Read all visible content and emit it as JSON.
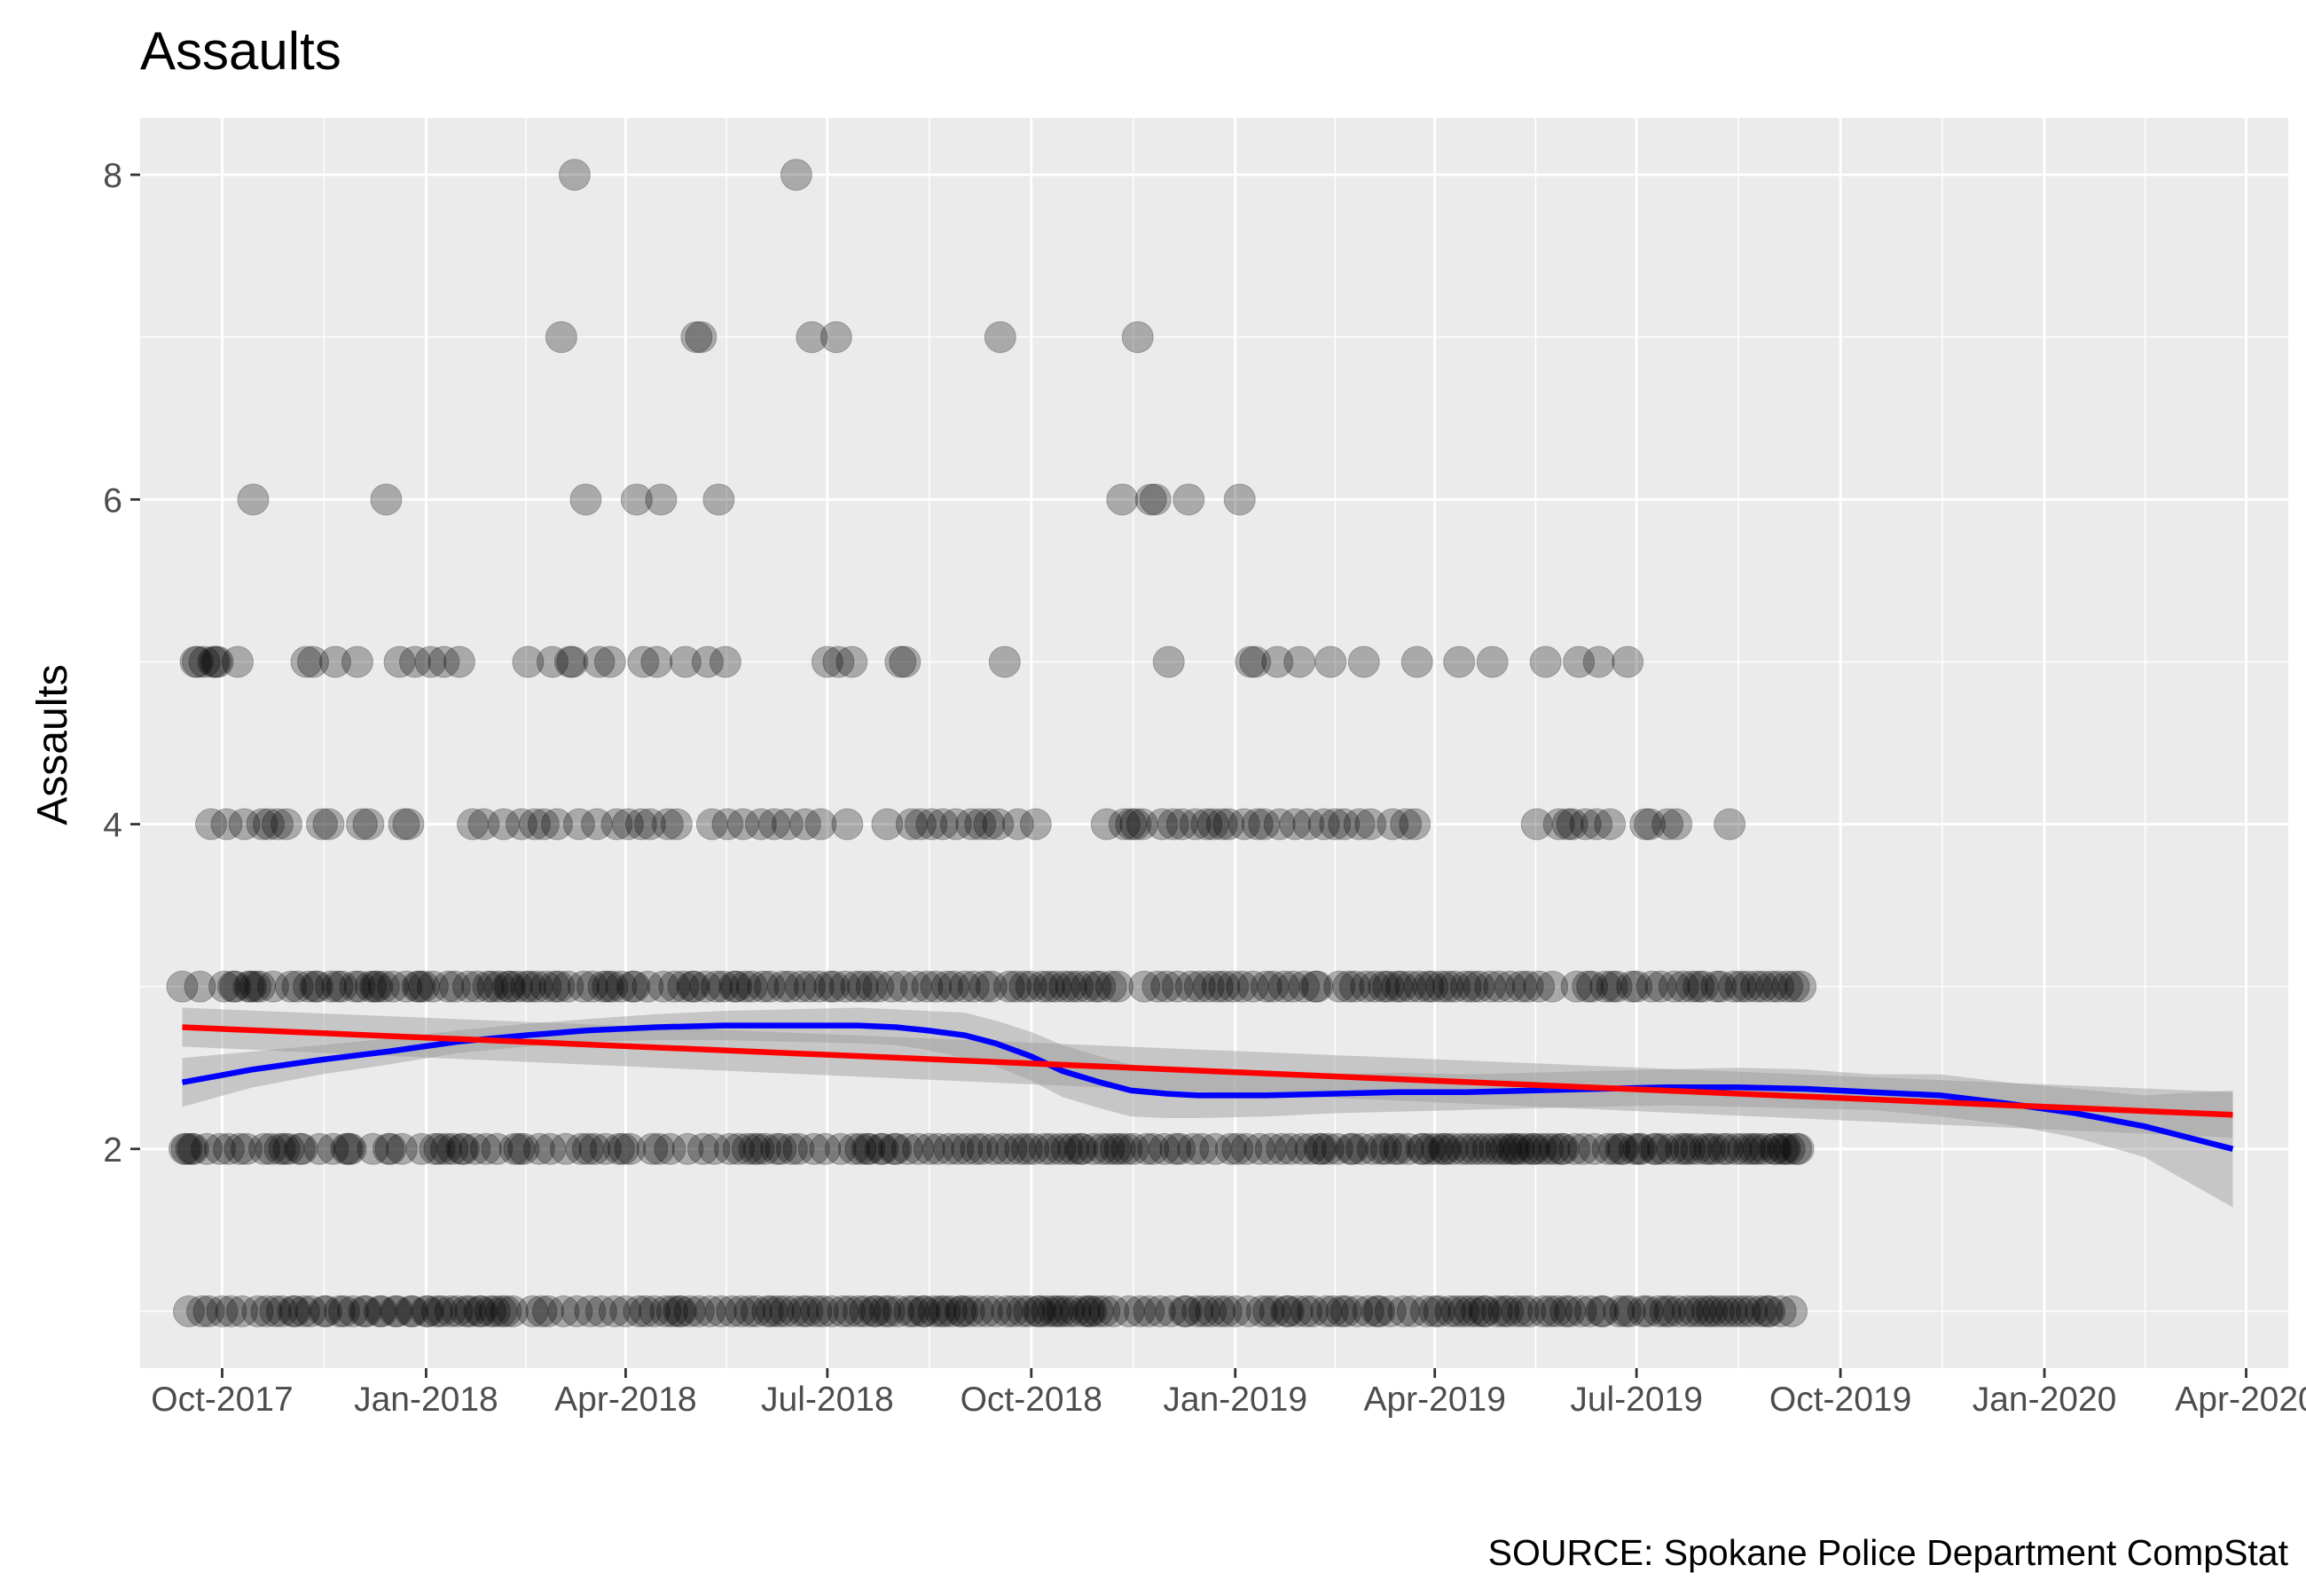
{
  "chart_data": {
    "type": "scatter",
    "title": "Assaults",
    "ylabel": "Assaults",
    "xlabel": "",
    "caption": "SOURCE: Spokane Police Department CompStat",
    "x_range": [
      "2017-08-25",
      "2020-04-20"
    ],
    "ylim": [
      0.65,
      8.35
    ],
    "y_ticks": [
      2,
      4,
      6,
      8
    ],
    "x_ticks": [
      {
        "date": "2017-10-01",
        "label": "Oct-2017"
      },
      {
        "date": "2018-01-01",
        "label": "Jan-2018"
      },
      {
        "date": "2018-04-01",
        "label": "Apr-2018"
      },
      {
        "date": "2018-07-01",
        "label": "Jul-2018"
      },
      {
        "date": "2018-10-01",
        "label": "Oct-2018"
      },
      {
        "date": "2019-01-01",
        "label": "Jan-2019"
      },
      {
        "date": "2019-04-01",
        "label": "Apr-2019"
      },
      {
        "date": "2019-07-01",
        "label": "Jul-2019"
      },
      {
        "date": "2019-10-01",
        "label": "Oct-2019"
      },
      {
        "date": "2020-01-01",
        "label": "Jan-2020"
      },
      {
        "date": "2020-04-01",
        "label": "Apr-2020"
      }
    ],
    "grid": true,
    "points": {
      "start_date": "2017-09-13",
      "point_color": "#000000",
      "point_opacity": 0.28,
      "description": "daily assault counts",
      "daily_values": [
        3,
        2,
        2,
        1,
        2,
        2,
        5,
        5,
        3,
        1,
        5,
        2,
        1,
        4,
        5,
        5,
        5,
        2,
        1,
        3,
        4,
        2,
        1,
        3,
        3,
        5,
        2,
        1,
        4,
        2,
        3,
        3,
        6,
        3,
        1,
        3,
        4,
        2,
        1,
        4,
        2,
        3,
        1,
        4,
        2,
        1,
        2,
        4,
        2,
        3,
        1,
        1,
        3,
        2,
        2,
        1,
        5,
        3,
        1,
        5,
        3,
        3,
        2,
        4,
        1,
        1,
        4,
        3,
        2,
        5,
        3,
        1,
        3,
        1,
        2,
        2,
        2,
        1,
        3,
        5,
        3,
        4,
        1,
        1,
        4,
        3,
        2,
        3,
        3,
        1,
        1,
        3,
        6,
        2,
        2,
        3,
        1,
        1,
        5,
        2,
        4,
        3,
        4,
        1,
        1,
        5,
        3,
        3,
        2,
        3,
        1,
        1,
        5,
        3,
        2,
        1,
        2,
        1,
        5,
        2,
        3,
        1,
        2,
        3,
        1,
        5,
        2,
        2,
        1,
        3,
        1,
        4,
        2,
        3,
        1,
        1,
        4,
        2,
        3,
        1,
        3,
        1,
        2,
        3,
        1,
        4,
        1,
        3,
        3,
        1,
        2,
        3,
        2,
        4,
        2,
        3,
        5,
        3,
        1,
        4,
        3,
        2,
        1,
        4,
        3,
        1,
        2,
        5,
        3,
        4,
        3,
        7,
        1,
        2,
        3,
        5,
        5,
        8,
        1,
        4,
        2,
        3,
        6,
        2,
        1,
        3,
        2,
        4,
        5,
        1,
        3,
        2,
        3,
        5,
        3,
        1,
        4,
        2,
        3,
        2,
        1,
        4,
        2,
        3,
        3,
        6,
        1,
        4,
        5,
        1,
        3,
        4,
        2,
        1,
        5,
        2,
        6,
        3,
        1,
        4,
        2,
        1,
        3,
        4,
        1,
        1,
        3,
        5,
        2,
        1,
        3,
        3,
        7,
        1,
        7,
        2,
        3,
        5,
        1,
        4,
        2,
        3,
        6,
        1,
        3,
        5,
        4,
        2,
        1,
        3,
        3,
        2,
        1,
        4,
        3,
        2,
        1,
        3,
        2,
        1,
        2,
        4,
        3,
        2,
        1,
        3,
        1,
        4,
        2,
        1,
        2,
        3,
        1,
        4,
        3,
        2,
        1,
        8,
        2,
        3,
        1,
        4,
        1,
        3,
        7,
        2,
        1,
        3,
        4,
        1,
        2,
        5,
        3,
        1,
        3,
        7,
        5,
        2,
        1,
        3,
        4,
        1,
        5,
        2,
        3,
        1,
        2,
        3,
        1,
        2,
        2,
        3,
        1,
        1,
        3,
        2,
        2,
        1,
        4,
        1,
        3,
        2,
        2,
        1,
        5,
        3,
        5,
        2,
        1,
        4,
        1,
        3,
        2,
        4,
        1,
        1,
        3,
        2,
        4,
        1,
        3,
        2,
        1,
        4,
        1,
        3,
        2,
        1,
        3,
        4,
        2,
        1,
        1,
        3,
        2,
        1,
        4,
        3,
        2,
        1,
        4,
        2,
        3,
        1,
        4,
        3,
        2,
        1,
        4,
        7,
        2,
        5,
        1,
        3,
        2,
        1,
        3,
        4,
        2,
        1,
        3,
        2,
        1,
        3,
        2,
        4,
        1,
        1,
        3,
        2,
        1,
        3,
        2,
        1,
        3,
        1,
        2,
        1,
        3,
        2,
        1,
        3,
        2,
        1,
        3,
        2,
        2,
        1,
        3,
        1,
        1,
        2,
        3,
        1,
        3,
        2,
        1,
        4,
        2,
        3,
        1,
        2,
        3,
        2,
        6,
        4,
        2,
        1,
        4,
        2,
        4,
        7,
        1,
        4,
        3,
        2,
        1,
        6,
        2,
        6,
        3,
        1,
        4,
        2,
        3,
        5,
        1,
        4,
        2,
        3,
        2,
        4,
        1,
        1,
        6,
        3,
        2,
        4,
        1,
        3,
        2,
        1,
        4,
        3,
        1,
        4,
        2,
        3,
        1,
        4,
        3,
        1,
        4,
        2,
        3,
        1,
        2,
        6,
        3,
        4,
        2,
        1,
        5,
        3,
        5,
        4,
        2,
        1,
        4,
        3,
        1,
        2,
        3,
        1,
        5,
        4,
        2,
        3,
        1,
        1,
        2,
        3,
        4,
        1,
        5,
        2,
        3,
        1,
        4,
        2,
        1,
        3,
        3,
        2,
        2,
        4,
        1,
        2,
        5,
        1,
        4,
        2,
        3,
        1,
        4,
        1,
        3,
        2,
        2,
        3,
        1,
        4,
        2,
        5,
        3,
        1,
        4,
        2,
        3,
        1,
        1,
        2,
        3,
        2,
        3,
        1,
        4,
        2,
        3,
        2,
        3,
        1,
        4,
        2,
        3,
        1,
        4,
        5,
        3,
        2,
        2,
        1,
        3,
        2,
        3,
        1,
        2,
        1,
        3,
        2,
        2,
        3,
        1,
        2,
        3,
        1,
        5,
        2,
        1,
        3,
        2,
        1,
        3,
        2,
        1,
        3,
        2,
        1,
        1,
        2,
        3,
        5,
        2,
        1,
        3,
        2,
        1,
        2,
        1,
        3,
        2,
        2,
        1,
        2,
        3,
        1,
        2,
        3,
        1,
        2,
        2,
        4,
        3,
        2,
        1,
        5,
        2,
        1,
        3,
        2,
        1,
        4,
        2,
        2,
        1,
        4,
        1,
        4,
        2,
        3,
        5,
        1,
        2,
        4,
        3,
        1,
        3,
        2,
        4,
        5,
        1,
        1,
        3,
        2,
        4,
        3,
        2,
        3,
        1,
        2,
        2,
        1,
        5,
        1,
        3,
        2,
        3,
        2,
        2,
        1,
        4,
        1,
        4,
        3,
        2,
        2,
        1,
        3,
        2,
        1,
        4,
        1,
        2,
        3,
        4,
        1,
        2,
        3,
        2,
        1,
        2,
        3,
        1,
        2,
        3,
        1,
        3,
        2,
        1,
        2,
        1,
        2,
        3,
        1,
        3,
        2,
        1,
        2,
        4,
        1,
        3,
        2,
        1,
        3,
        2,
        1,
        3,
        2,
        1,
        2,
        3,
        2,
        1,
        3,
        2,
        1,
        1,
        3,
        2,
        2,
        3,
        1,
        2,
        2,
        3,
        2,
        1,
        3,
        2,
        2,
        3
      ]
    },
    "series": [
      {
        "name": "loess",
        "color": "#0000ff",
        "x": [
          "2017-09-13",
          "2017-10-15",
          "2017-11-15",
          "2017-12-15",
          "2018-01-15",
          "2018-02-15",
          "2018-03-15",
          "2018-04-15",
          "2018-05-15",
          "2018-06-15",
          "2018-07-15",
          "2018-08-01",
          "2018-08-15",
          "2018-09-01",
          "2018-09-15",
          "2018-10-01",
          "2018-10-15",
          "2018-11-01",
          "2018-11-15",
          "2018-12-01",
          "2018-12-15",
          "2019-01-15",
          "2019-02-15",
          "2019-03-15",
          "2019-04-15",
          "2019-05-15",
          "2019-06-15",
          "2019-07-15",
          "2019-08-15",
          "2019-09-15",
          "2019-10-15",
          "2019-11-15",
          "2019-12-15",
          "2020-01-15",
          "2020-02-15",
          "2020-03-26"
        ],
        "values": [
          2.41,
          2.49,
          2.55,
          2.6,
          2.66,
          2.7,
          2.73,
          2.75,
          2.76,
          2.76,
          2.76,
          2.75,
          2.73,
          2.7,
          2.65,
          2.57,
          2.48,
          2.41,
          2.36,
          2.34,
          2.33,
          2.33,
          2.34,
          2.35,
          2.35,
          2.36,
          2.37,
          2.38,
          2.38,
          2.37,
          2.35,
          2.33,
          2.28,
          2.22,
          2.14,
          2.0
        ],
        "band_lower": [
          2.26,
          2.38,
          2.46,
          2.52,
          2.59,
          2.63,
          2.66,
          2.67,
          2.67,
          2.66,
          2.65,
          2.64,
          2.61,
          2.56,
          2.51,
          2.42,
          2.32,
          2.25,
          2.2,
          2.19,
          2.19,
          2.2,
          2.22,
          2.23,
          2.24,
          2.25,
          2.26,
          2.27,
          2.26,
          2.25,
          2.24,
          2.2,
          2.15,
          2.07,
          1.95,
          1.64
        ],
        "band_upper": [
          2.56,
          2.6,
          2.64,
          2.68,
          2.73,
          2.77,
          2.8,
          2.83,
          2.85,
          2.86,
          2.87,
          2.86,
          2.85,
          2.84,
          2.79,
          2.72,
          2.64,
          2.57,
          2.52,
          2.49,
          2.47,
          2.46,
          2.46,
          2.47,
          2.46,
          2.47,
          2.48,
          2.49,
          2.5,
          2.49,
          2.46,
          2.46,
          2.41,
          2.37,
          2.33,
          2.36
        ]
      },
      {
        "name": "linear",
        "color": "#ff0000",
        "x": [
          "2017-09-13",
          "2020-03-26"
        ],
        "values": [
          2.75,
          2.21
        ],
        "band_lower": [
          2.63,
          2.07
        ],
        "band_upper": [
          2.87,
          2.35
        ]
      }
    ],
    "band_color": "#999999",
    "band_opacity": 0.45
  }
}
